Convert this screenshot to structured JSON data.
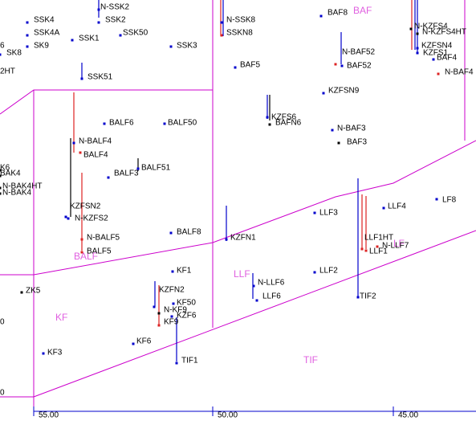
{
  "colors": {
    "boundary": "#cc00cc",
    "track_blue": "#0000cc",
    "track_red": "#dd2222",
    "track_black": "#000000",
    "region_label": "#e060e0"
  },
  "regions": [
    "BAF",
    "BALF",
    "LLF",
    "KF",
    "TIF",
    "LF"
  ],
  "wells": [
    "SSK4",
    "SSK4A",
    "SK9",
    "SK8",
    "N-SSK2",
    "SSK2",
    "SSK1",
    "SSK50",
    "SSK3",
    "N-SSK8",
    "SSKN8",
    "BAF8",
    "N-KZFS4",
    "N-KZFS4HT",
    "KZFSN4",
    "KZFS1",
    "BAF4",
    "N-BAF4",
    "N-BAF52",
    "BAF52",
    "BAF5",
    "SSK51",
    "KZFSN9",
    "KZFS6",
    "BAFN6",
    "BALF6",
    "BALF50",
    "N-BAF3",
    "BAF3",
    "N-BALF4",
    "BALF4",
    "BALF51",
    "BALF3",
    "K6",
    "BAK4",
    "N-BAK4HT",
    "N-BAK4",
    "KZFSN2",
    "N-KZFS2",
    "LLF4",
    "LF8",
    "LLF3",
    "N-BALF5",
    "BALF5",
    "BALF8",
    "KZFN1",
    "LLF1HT",
    "N-LLF7",
    "LLF1",
    "LLF2",
    "KF1",
    "N-LLF6",
    "LLF6",
    "TIF2",
    "KZFN2",
    "KF50",
    "N-KF9",
    "KZF6",
    "KF9",
    "ZK5",
    "KF6",
    "KF3",
    "TIF1",
    "2HT",
    "6",
    "0",
    "0"
  ],
  "axis": {
    "ticks": [
      "55.00",
      "50.00",
      "45.00"
    ]
  }
}
